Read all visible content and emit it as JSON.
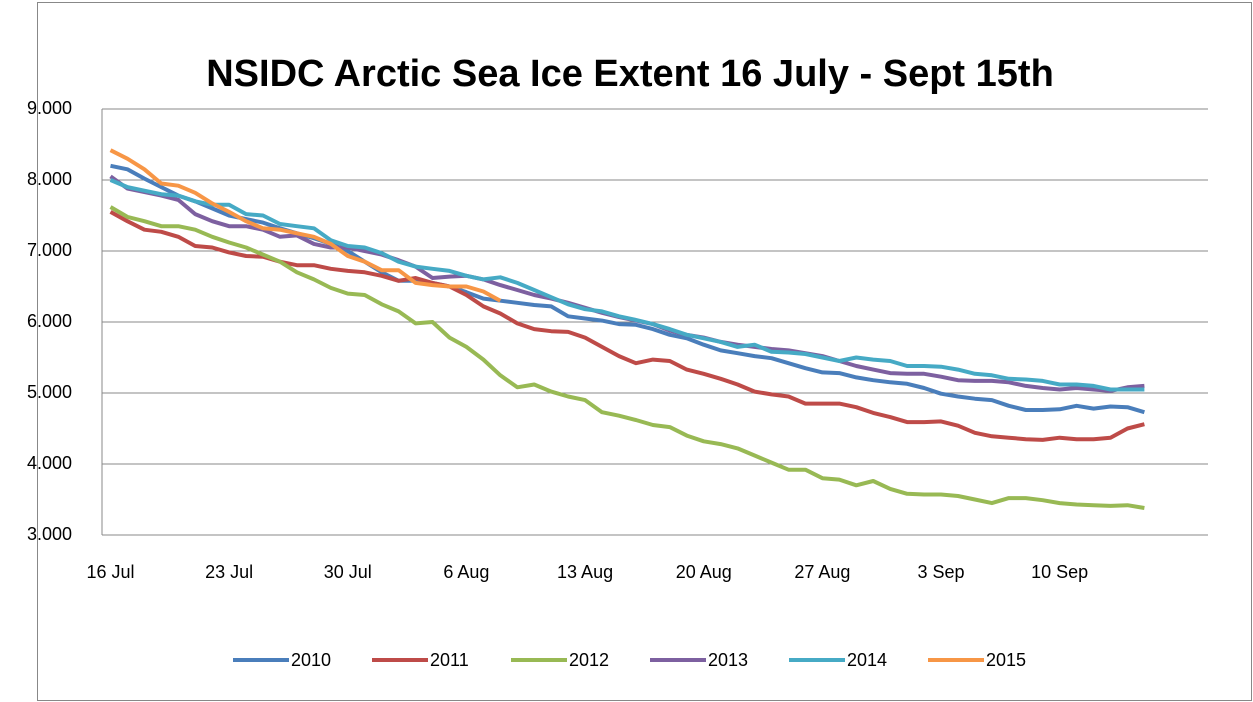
{
  "chart_data": {
    "type": "line",
    "title": "NSIDC Arctic Sea Ice Extent 16 July - Sept 15th",
    "categories": [
      "16 Jul",
      null,
      null,
      null,
      null,
      null,
      null,
      "23 Jul",
      null,
      null,
      null,
      null,
      null,
      null,
      "30 Jul",
      null,
      null,
      null,
      null,
      null,
      null,
      "6 Aug",
      null,
      null,
      null,
      null,
      null,
      null,
      "13 Aug",
      null,
      null,
      null,
      null,
      null,
      null,
      "20 Aug",
      null,
      null,
      null,
      null,
      null,
      null,
      "27 Aug",
      null,
      null,
      null,
      null,
      null,
      null,
      "3 Sep",
      null,
      null,
      null,
      null,
      null,
      null,
      "10 Sep",
      null,
      null,
      null,
      null,
      null
    ],
    "series": [
      {
        "name": "2010",
        "color": "#4a7ebb",
        "values": [
          8.2,
          8.15,
          8.02,
          7.9,
          7.78,
          7.7,
          7.6,
          7.5,
          7.45,
          7.4,
          7.32,
          7.25,
          7.18,
          7.1,
          7.0,
          6.85,
          6.7,
          6.58,
          6.58,
          6.55,
          6.5,
          6.42,
          6.33,
          6.3,
          6.27,
          6.24,
          6.22,
          6.08,
          6.05,
          6.02,
          5.97,
          5.96,
          5.9,
          5.82,
          5.77,
          5.68,
          5.6,
          5.56,
          5.52,
          5.49,
          5.42,
          5.35,
          5.29,
          5.28,
          5.22,
          5.18,
          5.15,
          5.13,
          5.07,
          4.99,
          4.95,
          4.92,
          4.9,
          4.82,
          4.76,
          4.76,
          4.77,
          4.82,
          4.78,
          4.81,
          4.8,
          4.73
        ]
      },
      {
        "name": "2011",
        "color": "#be4b48",
        "values": [
          7.55,
          7.42,
          7.3,
          7.27,
          7.2,
          7.07,
          7.05,
          6.98,
          6.93,
          6.92,
          6.85,
          6.8,
          6.8,
          6.75,
          6.72,
          6.7,
          6.65,
          6.58,
          6.62,
          6.55,
          6.5,
          6.38,
          6.22,
          6.12,
          5.98,
          5.9,
          5.87,
          5.86,
          5.78,
          5.65,
          5.52,
          5.42,
          5.47,
          5.45,
          5.33,
          5.27,
          5.2,
          5.12,
          5.02,
          4.98,
          4.95,
          4.85,
          4.85,
          4.85,
          4.8,
          4.72,
          4.66,
          4.59,
          4.59,
          4.6,
          4.54,
          4.44,
          4.39,
          4.37,
          4.35,
          4.34,
          4.37,
          4.35,
          4.35,
          4.37,
          4.5,
          4.56
        ]
      },
      {
        "name": "2012",
        "color": "#98b954",
        "values": [
          7.62,
          7.48,
          7.42,
          7.35,
          7.35,
          7.3,
          7.2,
          7.12,
          7.05,
          6.95,
          6.85,
          6.7,
          6.6,
          6.48,
          6.4,
          6.38,
          6.25,
          6.15,
          5.98,
          6.0,
          5.78,
          5.65,
          5.47,
          5.25,
          5.08,
          5.12,
          5.02,
          4.95,
          4.9,
          4.73,
          4.68,
          4.62,
          4.55,
          4.52,
          4.4,
          4.32,
          4.28,
          4.22,
          4.12,
          4.02,
          3.92,
          3.92,
          3.8,
          3.78,
          3.7,
          3.76,
          3.65,
          3.58,
          3.57,
          3.57,
          3.55,
          3.5,
          3.45,
          3.52,
          3.52,
          3.49,
          3.45,
          3.43,
          3.42,
          3.41,
          3.42,
          3.38
        ]
      },
      {
        "name": "2013",
        "color": "#7d60a0",
        "values": [
          8.05,
          7.88,
          7.83,
          7.78,
          7.72,
          7.52,
          7.42,
          7.35,
          7.35,
          7.3,
          7.2,
          7.22,
          7.1,
          7.05,
          7.05,
          7.0,
          6.95,
          6.87,
          6.78,
          6.62,
          6.64,
          6.65,
          6.6,
          6.52,
          6.45,
          6.38,
          6.33,
          6.27,
          6.2,
          6.13,
          6.07,
          6.02,
          5.97,
          5.88,
          5.82,
          5.78,
          5.72,
          5.68,
          5.65,
          5.62,
          5.6,
          5.56,
          5.52,
          5.45,
          5.38,
          5.33,
          5.28,
          5.27,
          5.27,
          5.23,
          5.18,
          5.17,
          5.17,
          5.15,
          5.1,
          5.07,
          5.05,
          5.07,
          5.05,
          5.03,
          5.08,
          5.1
        ]
      },
      {
        "name": "2014",
        "color": "#46aac5",
        "values": [
          8.0,
          7.9,
          7.85,
          7.8,
          7.78,
          7.7,
          7.65,
          7.65,
          7.52,
          7.5,
          7.38,
          7.35,
          7.32,
          7.15,
          7.07,
          7.05,
          6.97,
          6.85,
          6.78,
          6.75,
          6.72,
          6.65,
          6.6,
          6.63,
          6.55,
          6.45,
          6.35,
          6.25,
          6.18,
          6.15,
          6.08,
          6.03,
          5.97,
          5.9,
          5.82,
          5.77,
          5.72,
          5.65,
          5.68,
          5.58,
          5.57,
          5.55,
          5.5,
          5.45,
          5.5,
          5.47,
          5.45,
          5.38,
          5.38,
          5.37,
          5.33,
          5.27,
          5.25,
          5.2,
          5.19,
          5.17,
          5.12,
          5.12,
          5.1,
          5.05,
          5.05,
          5.05
        ]
      },
      {
        "name": "2015",
        "color": "#f79646",
        "values": [
          8.42,
          8.3,
          8.15,
          7.95,
          7.92,
          7.82,
          7.67,
          7.55,
          7.42,
          7.32,
          7.3,
          7.25,
          7.2,
          7.1,
          6.93,
          6.85,
          6.73,
          6.73,
          6.55,
          6.52,
          6.5,
          6.5,
          6.43,
          6.3,
          null,
          null,
          null,
          null,
          null,
          null,
          null,
          null,
          null,
          null,
          null,
          null,
          null,
          null,
          null,
          null,
          null,
          null,
          null,
          null,
          null,
          null,
          null,
          null,
          null,
          null,
          null,
          null,
          null,
          null,
          null,
          null,
          null,
          null,
          null,
          null,
          null,
          null
        ]
      }
    ],
    "ylim": [
      3,
      9
    ],
    "yticks": [
      {
        "value": 3,
        "label": "3.000"
      },
      {
        "value": 4,
        "label": "4.000"
      },
      {
        "value": 5,
        "label": "5.000"
      },
      {
        "value": 6,
        "label": "6.000"
      },
      {
        "value": 7,
        "label": "7.000"
      },
      {
        "value": 8,
        "label": "8.000"
      },
      {
        "value": 9,
        "label": "9.000"
      }
    ],
    "grid": true,
    "legend": "bottom"
  }
}
